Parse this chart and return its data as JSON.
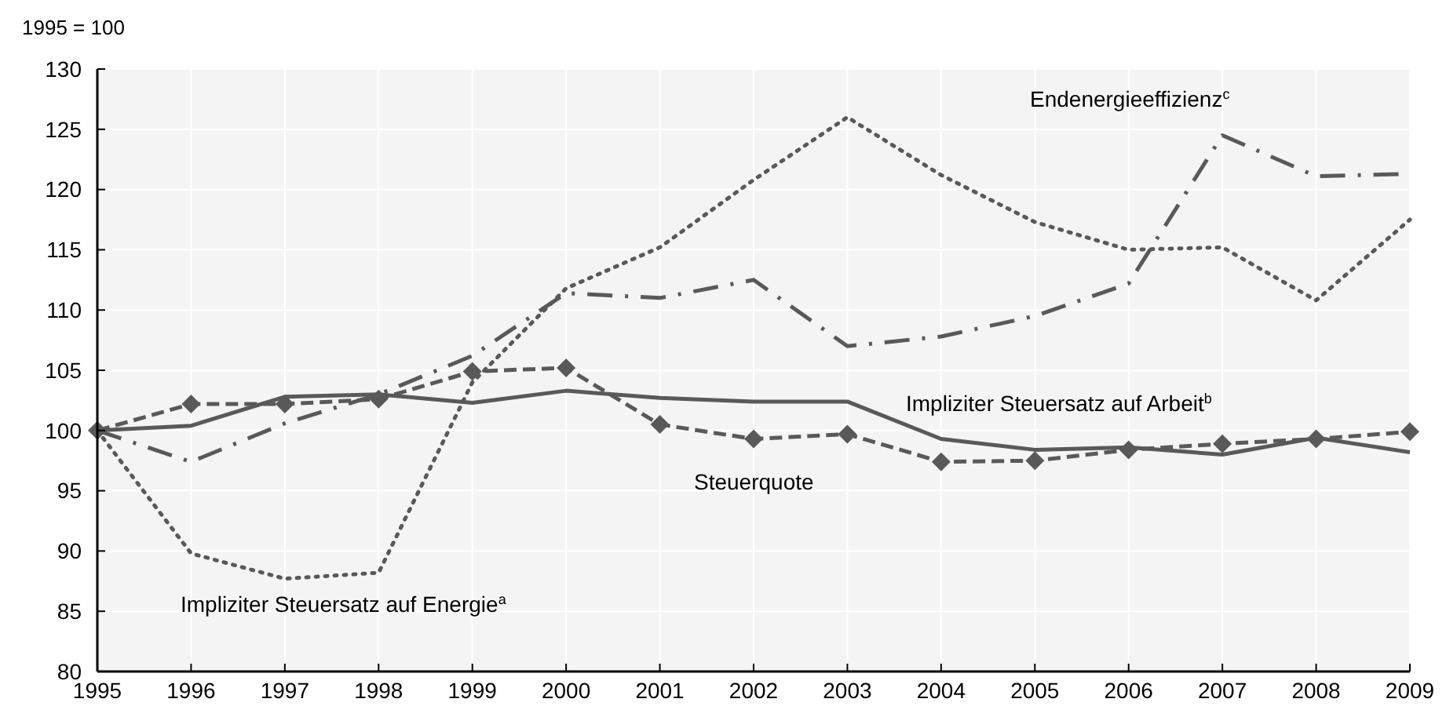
{
  "chart_data": {
    "type": "line",
    "ylabel": "1995 = 100",
    "x": [
      1995,
      1996,
      1997,
      1998,
      1999,
      2000,
      2001,
      2002,
      2003,
      2004,
      2005,
      2006,
      2007,
      2008,
      2009
    ],
    "xlim": [
      1995,
      2009
    ],
    "xticks": [
      1995,
      1996,
      1997,
      1998,
      1999,
      2000,
      2001,
      2002,
      2003,
      2004,
      2005,
      2006,
      2007,
      2008,
      2009
    ],
    "ylim": [
      80,
      130
    ],
    "yticks": [
      80,
      85,
      90,
      95,
      100,
      105,
      110,
      115,
      120,
      125,
      130
    ],
    "grid": true,
    "series": [
      {
        "name": "Impliziter Steuersatz auf Arbeit$^{b}$",
        "color": "#595959",
        "line_style": "solid",
        "marker": "none",
        "values": [
          100,
          100.4,
          102.8,
          103,
          102.3,
          103.3,
          102.7,
          102.4,
          102.4,
          99.3,
          98.4,
          98.6,
          98.0,
          99.4,
          98.2
        ]
      },
      {
        "name": "Steuerquote",
        "color": "#595959",
        "line_style": "dashed",
        "marker": "diamond",
        "values": [
          100,
          102.2,
          102.2,
          102.6,
          104.9,
          105.2,
          100.5,
          99.3,
          99.7,
          97.4,
          97.5,
          98.4,
          98.9,
          99.3,
          99.9
        ]
      },
      {
        "name": "Impliziter Steuersatz auf Energie$^{a}$",
        "color": "#595959",
        "line_style": "dotted",
        "marker": "none",
        "values": [
          100,
          89.8,
          87.7,
          88.2,
          104,
          111.8,
          115.2,
          120.8,
          126,
          121.2,
          117.3,
          115,
          115.2,
          110.8,
          117.5
        ]
      },
      {
        "name": "Endenergieeffizienz$^{c}$",
        "color": "#595959",
        "line_style": "dashdot",
        "marker": "none",
        "values": [
          100,
          97.4,
          100.6,
          103,
          106.2,
          111.4,
          111,
          112.5,
          107,
          107.8,
          109.5,
          112.2,
          124.5,
          121.1,
          121.3
        ]
      }
    ]
  }
}
